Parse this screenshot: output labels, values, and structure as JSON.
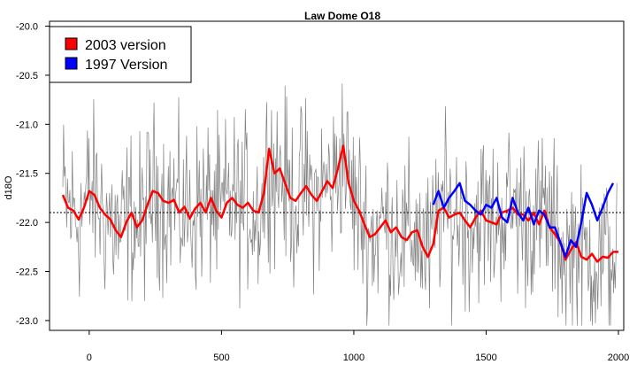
{
  "chart_data": {
    "type": "line",
    "title": "Law Dome O18",
    "xlabel": "",
    "ylabel": "d18O",
    "xlim": [
      -150,
      2020
    ],
    "ylim": [
      -23.1,
      -19.95
    ],
    "xticks": [
      0,
      500,
      1000,
      1500,
      2000
    ],
    "yticks": [
      -20.0,
      -20.5,
      -21.0,
      -21.5,
      -22.0,
      -22.5,
      -23.0
    ],
    "xtick_labels": [
      "0",
      "500",
      "1000",
      "1500",
      "2000"
    ],
    "ytick_labels": [
      "-20.0",
      "-20.5",
      "-21.0",
      "-21.5",
      "-22.0",
      "-22.5",
      "-23.0"
    ],
    "grid": false,
    "legend_position": "top-left",
    "reference_line": {
      "y": -21.9,
      "style": "dotted",
      "color": "#000000"
    },
    "raw_series": {
      "color": "#808080",
      "x_start": -100,
      "x_end": 1995,
      "x_step": 3
    },
    "series": [
      {
        "name": "2003 version",
        "color": "#ff0000",
        "x": [
          -100,
          -80,
          -60,
          -40,
          -20,
          0,
          20,
          40,
          60,
          80,
          100,
          120,
          140,
          160,
          180,
          200,
          220,
          240,
          260,
          280,
          300,
          320,
          340,
          360,
          380,
          400,
          420,
          440,
          460,
          480,
          500,
          520,
          540,
          560,
          580,
          600,
          620,
          640,
          660,
          680,
          700,
          720,
          740,
          760,
          780,
          800,
          820,
          840,
          860,
          880,
          900,
          920,
          940,
          960,
          980,
          1000,
          1020,
          1040,
          1060,
          1080,
          1100,
          1120,
          1140,
          1160,
          1180,
          1200,
          1220,
          1240,
          1260,
          1280,
          1300,
          1320,
          1340,
          1360,
          1380,
          1400,
          1420,
          1440,
          1460,
          1480,
          1500,
          1520,
          1540,
          1560,
          1580,
          1600,
          1620,
          1640,
          1660,
          1680,
          1700,
          1720,
          1740,
          1760,
          1780,
          1800,
          1820,
          1840,
          1860,
          1880,
          1900,
          1920,
          1940,
          1960,
          1980,
          2000
        ],
        "values": [
          -21.72,
          -21.85,
          -21.88,
          -21.97,
          -21.85,
          -21.68,
          -21.72,
          -21.85,
          -21.92,
          -21.97,
          -22.08,
          -22.15,
          -22.0,
          -21.9,
          -22.05,
          -21.98,
          -21.82,
          -21.68,
          -21.7,
          -21.78,
          -21.8,
          -21.77,
          -21.9,
          -21.84,
          -21.96,
          -21.86,
          -21.8,
          -21.9,
          -21.75,
          -21.88,
          -21.95,
          -21.8,
          -21.75,
          -21.82,
          -21.85,
          -21.8,
          -21.88,
          -21.9,
          -21.7,
          -21.25,
          -21.5,
          -21.45,
          -21.6,
          -21.75,
          -21.78,
          -21.7,
          -21.63,
          -21.72,
          -21.78,
          -21.68,
          -21.58,
          -21.65,
          -21.45,
          -21.22,
          -21.6,
          -21.78,
          -21.88,
          -22.02,
          -22.15,
          -22.12,
          -22.05,
          -21.98,
          -22.1,
          -22.05,
          -22.15,
          -22.18,
          -22.1,
          -22.08,
          -22.25,
          -22.35,
          -22.22,
          -21.88,
          -21.85,
          -21.95,
          -21.92,
          -21.9,
          -21.98,
          -22.05,
          -21.95,
          -21.88,
          -21.98,
          -22.0,
          -22.02,
          -21.9,
          -21.88,
          -21.85,
          -21.92,
          -21.92,
          -21.98,
          -21.9,
          -22.02,
          -21.88,
          -22.05,
          -22.12,
          -22.2,
          -22.38,
          -22.28,
          -22.2,
          -22.35,
          -22.38,
          -22.32,
          -22.4,
          -22.35,
          -22.36,
          -22.3,
          -22.3
        ]
      },
      {
        "name": "1997 Version",
        "color": "#0000ff",
        "x": [
          1300,
          1320,
          1340,
          1360,
          1380,
          1400,
          1420,
          1440,
          1460,
          1480,
          1500,
          1520,
          1540,
          1560,
          1580,
          1600,
          1620,
          1640,
          1660,
          1680,
          1700,
          1720,
          1740,
          1760,
          1780,
          1800,
          1820,
          1840,
          1860,
          1880,
          1900,
          1920,
          1940,
          1960,
          1980
        ],
        "values": [
          -21.82,
          -21.68,
          -21.85,
          -21.75,
          -21.68,
          -21.6,
          -21.78,
          -21.82,
          -21.88,
          -21.92,
          -21.82,
          -21.85,
          -21.75,
          -21.95,
          -22.0,
          -21.75,
          -21.9,
          -21.98,
          -21.85,
          -22.02,
          -21.88,
          -21.92,
          -22.05,
          -22.05,
          -22.2,
          -22.35,
          -22.18,
          -22.25,
          -22.0,
          -21.7,
          -21.82,
          -21.98,
          -21.85,
          -21.7,
          -21.6
        ]
      }
    ]
  }
}
